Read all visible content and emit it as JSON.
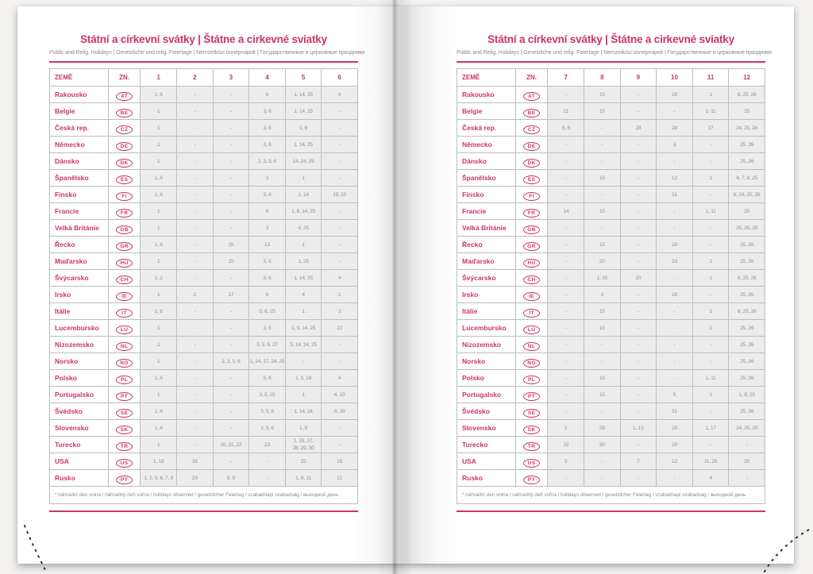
{
  "accent_color": "#cb3565",
  "page_title": "Státní a církevní svátky | Štátne a cirkevné sviatky",
  "subtitle": "Public and Relig. Holidays | Gesetzliche und relig. Feiertage | Nemzetközi ünnepnapok | Государственные и церковные праздники",
  "table": {
    "country_header": "ZEMĚ",
    "code_header": "ZN.",
    "footnote": "* náhradní den volna / náhradný deň voľna / holidays observed / gesetzlicher Feiertag / szabadnapi szabadság / выходной день"
  },
  "pages": [
    {
      "side": "left",
      "month_headers": [
        "1",
        "2",
        "3",
        "4",
        "5",
        "6"
      ],
      "rows": [
        {
          "country": "Rakousko",
          "code": "AT",
          "values": [
            "1, 6",
            "-",
            "-",
            "6",
            "1, 14, 25",
            "4"
          ]
        },
        {
          "country": "Belgie",
          "code": "BE",
          "values": [
            "1",
            "-",
            "-",
            "3, 6",
            "1, 14, 25",
            "-"
          ]
        },
        {
          "country": "Česká rep.",
          "code": "CZ",
          "values": [
            "1",
            "-",
            "-",
            "3, 6",
            "1, 8",
            "-"
          ]
        },
        {
          "country": "Německo",
          "code": "DE",
          "values": [
            "1",
            "-",
            "-",
            "3, 6",
            "1, 14, 25",
            "-"
          ]
        },
        {
          "country": "Dánsko",
          "code": "DK",
          "values": [
            "1",
            "-",
            "-",
            "2, 3, 5, 6",
            "14, 24, 25",
            "-"
          ]
        },
        {
          "country": "Španělsko",
          "code": "ES",
          "values": [
            "1, 6",
            "-",
            "-",
            "3",
            "1",
            "-"
          ]
        },
        {
          "country": "Finsko",
          "code": "FI",
          "values": [
            "1, 6",
            "-",
            "-",
            "3, 6",
            "1, 14",
            "19, 20"
          ]
        },
        {
          "country": "Francie",
          "code": "FR",
          "values": [
            "1",
            "-",
            "-",
            "6",
            "1, 8, 14, 25",
            "-"
          ]
        },
        {
          "country": "Velká Británie",
          "code": "GB",
          "values": [
            "1",
            "-",
            "-",
            "3",
            "4, 25",
            "-"
          ]
        },
        {
          "country": "Řecko",
          "code": "GR",
          "values": [
            "1, 6",
            "-",
            "25",
            "13",
            "1",
            "-"
          ]
        },
        {
          "country": "Maďarsko",
          "code": "HU",
          "values": [
            "1",
            "-",
            "15",
            "3, 6",
            "1, 25",
            "-"
          ]
        },
        {
          "country": "Švýcarsko",
          "code": "CH",
          "values": [
            "1, 2",
            "-",
            "-",
            "3, 6",
            "1, 14, 25",
            "4"
          ]
        },
        {
          "country": "Irsko",
          "code": "IE",
          "values": [
            "1",
            "2",
            "17",
            "6",
            "4",
            "1"
          ]
        },
        {
          "country": "Itálie",
          "code": "IT",
          "values": [
            "1, 6",
            "-",
            "-",
            "5, 6, 25",
            "1",
            "2"
          ]
        },
        {
          "country": "Lucembursko",
          "code": "LU",
          "values": [
            "1",
            "-",
            "-",
            "3, 6",
            "1, 9, 14, 25",
            "23"
          ]
        },
        {
          "country": "Nizozemsko",
          "code": "NL",
          "values": [
            "1",
            "-",
            "-",
            "3, 5, 6, 27",
            "5, 14, 24, 25",
            "-"
          ]
        },
        {
          "country": "Norsko",
          "code": "NO",
          "values": [
            "1",
            "-",
            "2, 3, 5, 6",
            "1, 14, 17, 24, 25",
            "-",
            "-"
          ]
        },
        {
          "country": "Polsko",
          "code": "PL",
          "values": [
            "1, 6",
            "-",
            "-",
            "5, 6",
            "1, 3, 24",
            "4"
          ]
        },
        {
          "country": "Portugalsko",
          "code": "PT",
          "values": [
            "1",
            "-",
            "-",
            "3, 5, 25",
            "1",
            "4, 10"
          ]
        },
        {
          "country": "Švédsko",
          "code": "SE",
          "values": [
            "1, 6",
            "-",
            "-",
            "3, 5, 6",
            "1, 14, 24",
            "6, 20"
          ]
        },
        {
          "country": "Slovensko",
          "code": "SK",
          "values": [
            "1, 6",
            "-",
            "-",
            "3, 5, 6",
            "1, 8",
            "-"
          ]
        },
        {
          "country": "Turecko",
          "code": "TR",
          "values": [
            "1",
            "-",
            "20, 21, 22",
            "23",
            "1, 19, 27,\n28, 29, 30",
            "-"
          ]
        },
        {
          "country": "USA",
          "code": "US",
          "values": [
            "1, 19",
            "16",
            "-",
            "-",
            "25",
            "19"
          ]
        },
        {
          "country": "Rusko",
          "code": "PY",
          "values": [
            "1, 2, 5, 6, 7, 8",
            "23",
            "8, 9",
            "-",
            "1, 9, 11",
            "12"
          ]
        }
      ]
    },
    {
      "side": "right",
      "month_headers": [
        "7",
        "8",
        "9",
        "10",
        "11",
        "12"
      ],
      "rows": [
        {
          "country": "Rakousko",
          "code": "AT",
          "values": [
            "-",
            "15",
            "-",
            "26",
            "1",
            "8, 25, 26"
          ]
        },
        {
          "country": "Belgie",
          "code": "BE",
          "values": [
            "21",
            "15",
            "-",
            "-",
            "1, 11",
            "25"
          ]
        },
        {
          "country": "Česká rep.",
          "code": "CZ",
          "values": [
            "5, 6",
            "-",
            "28",
            "28",
            "17",
            "24, 25, 26"
          ]
        },
        {
          "country": "Německo",
          "code": "DE",
          "values": [
            "-",
            "-",
            "-",
            "3",
            "-",
            "25, 26"
          ]
        },
        {
          "country": "Dánsko",
          "code": "DK",
          "values": [
            "-",
            "-",
            "-",
            "-",
            "-",
            "25, 26"
          ]
        },
        {
          "country": "Španělsko",
          "code": "ES",
          "values": [
            "-",
            "15",
            "-",
            "12",
            "1",
            "6, 7, 8, 25"
          ]
        },
        {
          "country": "Finsko",
          "code": "FI",
          "values": [
            "-",
            "-",
            "-",
            "31",
            "-",
            "6, 24, 25, 26"
          ]
        },
        {
          "country": "Francie",
          "code": "FR",
          "values": [
            "14",
            "15",
            "-",
            "-",
            "1, 11",
            "25"
          ]
        },
        {
          "country": "Velká Británie",
          "code": "GB",
          "values": [
            "-",
            "-",
            "-",
            "-",
            "-",
            "25, 26, 28"
          ]
        },
        {
          "country": "Řecko",
          "code": "GR",
          "values": [
            "-",
            "15",
            "-",
            "28",
            "-",
            "25, 26"
          ]
        },
        {
          "country": "Maďarsko",
          "code": "HU",
          "values": [
            "-",
            "20",
            "-",
            "23",
            "1",
            "25, 26"
          ]
        },
        {
          "country": "Švýcarsko",
          "code": "CH",
          "values": [
            "-",
            "1, 15",
            "20",
            "-",
            "1",
            "8, 25, 26"
          ]
        },
        {
          "country": "Irsko",
          "code": "IE",
          "values": [
            "-",
            "3",
            "-",
            "26",
            "-",
            "25, 26"
          ]
        },
        {
          "country": "Itálie",
          "code": "IT",
          "values": [
            "-",
            "15",
            "-",
            "-",
            "1",
            "8, 25, 26"
          ]
        },
        {
          "country": "Lucembursko",
          "code": "LU",
          "values": [
            "-",
            "15",
            "-",
            "-",
            "1",
            "25, 26"
          ]
        },
        {
          "country": "Nizozemsko",
          "code": "NL",
          "values": [
            "-",
            "-",
            "-",
            "-",
            "-",
            "25, 26"
          ]
        },
        {
          "country": "Norsko",
          "code": "NO",
          "values": [
            "-",
            "-",
            "-",
            "-",
            "-",
            "25, 26"
          ]
        },
        {
          "country": "Polsko",
          "code": "PL",
          "values": [
            "-",
            "15",
            "-",
            "-",
            "1, 11",
            "25, 26"
          ]
        },
        {
          "country": "Portugalsko",
          "code": "PT",
          "values": [
            "-",
            "15",
            "-",
            "5",
            "1",
            "1, 8, 25"
          ]
        },
        {
          "country": "Švédsko",
          "code": "SE",
          "values": [
            "-",
            "-",
            "-",
            "31",
            "-",
            "25, 26"
          ]
        },
        {
          "country": "Slovensko",
          "code": "SK",
          "values": [
            "5",
            "29",
            "1, 15",
            "28",
            "1, 17",
            "24, 25, 26"
          ]
        },
        {
          "country": "Turecko",
          "code": "TR",
          "values": [
            "15",
            "30",
            "-",
            "29",
            "-",
            "-"
          ]
        },
        {
          "country": "USA",
          "code": "US",
          "values": [
            "3",
            "-",
            "7",
            "12",
            "11, 26",
            "25"
          ]
        },
        {
          "country": "Rusko",
          "code": "PY",
          "values": [
            "-",
            "-",
            "-",
            "-",
            "4",
            "-"
          ]
        }
      ]
    }
  ]
}
